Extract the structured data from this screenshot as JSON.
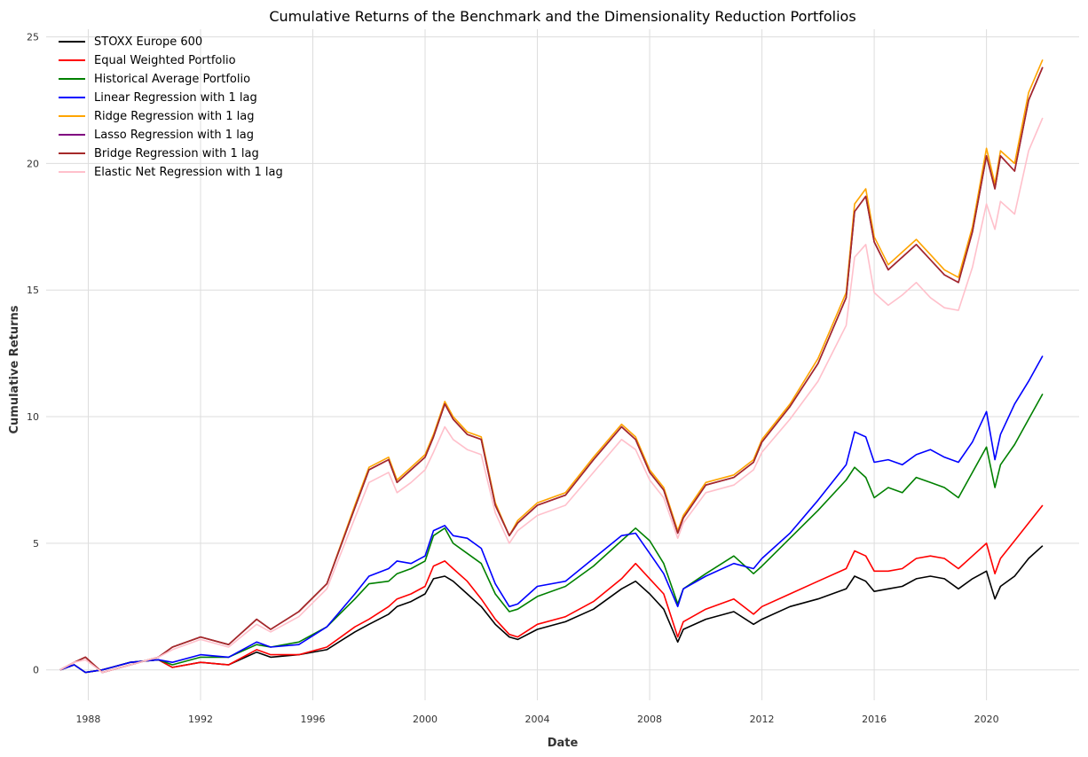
{
  "chart_data": {
    "type": "line",
    "title": "Cumulative Returns of the Benchmark and the Dimensionality Reduction Portfolios",
    "xlabel": "Date",
    "ylabel": "Cumulative Returns",
    "x_ticks": [
      "1988",
      "1992",
      "1996",
      "2000",
      "2004",
      "2008",
      "2012",
      "2016",
      "2020"
    ],
    "y_ticks": [
      "0",
      "5",
      "10",
      "15",
      "20",
      "25"
    ],
    "xlim": [
      1986.5,
      2023.3
    ],
    "ylim": [
      -1.2,
      25.3
    ],
    "grid": true,
    "legend_position": "top-left",
    "x": [
      1987.0,
      1987.5,
      1987.9,
      1988.5,
      1989.5,
      1990.5,
      1991.0,
      1992.0,
      1993.0,
      1994.0,
      1994.5,
      1995.5,
      1996.5,
      1997.5,
      1998.0,
      1998.7,
      1999.0,
      1999.5,
      2000.0,
      2000.3,
      2000.7,
      2001.0,
      2001.5,
      2002.0,
      2002.5,
      2003.0,
      2003.3,
      2004.0,
      2005.0,
      2006.0,
      2007.0,
      2007.5,
      2008.0,
      2008.5,
      2009.0,
      2009.2,
      2010.0,
      2011.0,
      2011.7,
      2012.0,
      2013.0,
      2014.0,
      2015.0,
      2015.3,
      2015.7,
      2016.0,
      2016.5,
      2017.0,
      2017.5,
      2018.0,
      2018.5,
      2019.0,
      2019.5,
      2020.0,
      2020.3,
      2020.5,
      2021.0,
      2021.5,
      2022.0
    ],
    "series": [
      {
        "name": "STOXX Europe 600",
        "color": "#000000",
        "values": [
          0.0,
          0.2,
          -0.1,
          0.0,
          0.3,
          0.4,
          0.1,
          0.3,
          0.2,
          0.7,
          0.5,
          0.6,
          0.8,
          1.5,
          1.8,
          2.2,
          2.5,
          2.7,
          3.0,
          3.6,
          3.7,
          3.5,
          3.0,
          2.5,
          1.8,
          1.3,
          1.2,
          1.6,
          1.9,
          2.4,
          3.2,
          3.5,
          3.0,
          2.4,
          1.1,
          1.6,
          2.0,
          2.3,
          1.8,
          2.0,
          2.5,
          2.8,
          3.2,
          3.7,
          3.5,
          3.1,
          3.2,
          3.3,
          3.6,
          3.7,
          3.6,
          3.2,
          3.6,
          3.9,
          2.8,
          3.3,
          3.7,
          4.4,
          4.9
        ]
      },
      {
        "name": "Equal Weighted Portfolio",
        "color": "#ff0000",
        "values": [
          0.0,
          0.2,
          -0.1,
          0.0,
          0.3,
          0.4,
          0.1,
          0.3,
          0.2,
          0.8,
          0.6,
          0.6,
          0.9,
          1.7,
          2.0,
          2.5,
          2.8,
          3.0,
          3.3,
          4.1,
          4.3,
          4.0,
          3.5,
          2.8,
          2.0,
          1.4,
          1.3,
          1.8,
          2.1,
          2.7,
          3.6,
          4.2,
          3.6,
          3.0,
          1.3,
          1.9,
          2.4,
          2.8,
          2.2,
          2.5,
          3.0,
          3.5,
          4.0,
          4.7,
          4.5,
          3.9,
          3.9,
          4.0,
          4.4,
          4.5,
          4.4,
          4.0,
          4.5,
          5.0,
          3.8,
          4.4,
          5.1,
          5.8,
          6.5
        ]
      },
      {
        "name": "Historical Average Portfolio",
        "color": "#008000",
        "values": [
          0.0,
          0.2,
          -0.1,
          0.0,
          0.3,
          0.4,
          0.2,
          0.5,
          0.5,
          1.0,
          0.9,
          1.1,
          1.7,
          2.8,
          3.4,
          3.5,
          3.8,
          4.0,
          4.3,
          5.3,
          5.6,
          5.0,
          4.6,
          4.2,
          3.0,
          2.3,
          2.4,
          2.9,
          3.3,
          4.1,
          5.1,
          5.6,
          5.1,
          4.2,
          2.6,
          3.2,
          3.8,
          4.5,
          3.8,
          4.1,
          5.2,
          6.3,
          7.5,
          8.0,
          7.6,
          6.8,
          7.2,
          7.0,
          7.6,
          7.4,
          7.2,
          6.8,
          7.8,
          8.8,
          7.2,
          8.1,
          8.9,
          9.9,
          10.9
        ]
      },
      {
        "name": "Linear Regression with 1 lag",
        "color": "#0000ff",
        "values": [
          0.0,
          0.2,
          -0.1,
          0.0,
          0.3,
          0.4,
          0.3,
          0.6,
          0.5,
          1.1,
          0.9,
          1.0,
          1.7,
          3.0,
          3.7,
          4.0,
          4.3,
          4.2,
          4.5,
          5.5,
          5.7,
          5.3,
          5.2,
          4.8,
          3.4,
          2.5,
          2.6,
          3.3,
          3.5,
          4.4,
          5.3,
          5.4,
          4.6,
          3.8,
          2.5,
          3.2,
          3.7,
          4.2,
          4.0,
          4.4,
          5.4,
          6.7,
          8.1,
          9.4,
          9.2,
          8.2,
          8.3,
          8.1,
          8.5,
          8.7,
          8.4,
          8.2,
          9.0,
          10.2,
          8.3,
          9.3,
          10.5,
          11.4,
          12.4
        ]
      },
      {
        "name": "Ridge Regression with 1 lag",
        "color": "#ffa500",
        "values": [
          0.0,
          0.3,
          0.5,
          -0.1,
          0.2,
          0.5,
          0.9,
          1.3,
          1.0,
          2.0,
          1.6,
          2.3,
          3.4,
          6.5,
          8.0,
          8.4,
          7.5,
          8.0,
          8.5,
          9.3,
          10.6,
          10.0,
          9.4,
          9.2,
          6.6,
          5.3,
          5.9,
          6.6,
          7.0,
          8.4,
          9.7,
          9.2,
          7.9,
          7.2,
          5.5,
          6.1,
          7.4,
          7.7,
          8.3,
          9.1,
          10.5,
          12.3,
          14.9,
          18.4,
          19.0,
          17.1,
          16.0,
          16.5,
          17.0,
          16.4,
          15.8,
          15.5,
          17.5,
          20.6,
          19.2,
          20.5,
          20.0,
          22.8,
          24.1
        ]
      },
      {
        "name": "Lasso Regression with 1 lag",
        "color": "#800080",
        "values": [
          0.0,
          0.3,
          0.5,
          -0.1,
          0.2,
          0.5,
          0.9,
          1.3,
          1.0,
          2.0,
          1.6,
          2.3,
          3.4,
          6.4,
          7.9,
          8.3,
          7.4,
          7.9,
          8.4,
          9.2,
          10.5,
          9.9,
          9.3,
          9.1,
          6.5,
          5.3,
          5.8,
          6.5,
          6.9,
          8.3,
          9.6,
          9.1,
          7.8,
          7.1,
          5.4,
          6.0,
          7.3,
          7.6,
          8.2,
          9.0,
          10.4,
          12.1,
          14.7,
          18.1,
          18.7,
          16.9,
          15.8,
          16.3,
          16.8,
          16.2,
          15.6,
          15.3,
          17.3,
          20.3,
          19.0,
          20.3,
          19.7,
          22.5,
          23.8
        ]
      },
      {
        "name": "Bridge Regression with 1 lag",
        "color": "#a52a2a",
        "values": [
          0.0,
          0.3,
          0.5,
          -0.1,
          0.2,
          0.5,
          0.9,
          1.3,
          1.0,
          2.0,
          1.6,
          2.3,
          3.4,
          6.4,
          7.9,
          8.3,
          7.4,
          7.9,
          8.4,
          9.2,
          10.5,
          9.9,
          9.3,
          9.1,
          6.5,
          5.3,
          5.8,
          6.5,
          6.9,
          8.3,
          9.6,
          9.1,
          7.8,
          7.1,
          5.4,
          6.0,
          7.3,
          7.6,
          8.2,
          9.0,
          10.4,
          12.1,
          14.7,
          18.1,
          18.7,
          16.9,
          15.8,
          16.3,
          16.8,
          16.2,
          15.6,
          15.3,
          17.3,
          20.3,
          19.0,
          20.3,
          19.7,
          22.5,
          23.8
        ]
      },
      {
        "name": "Elastic Net Regression with 1 lag",
        "color": "#ffc0cb",
        "values": [
          0.0,
          0.3,
          0.4,
          -0.1,
          0.2,
          0.5,
          0.8,
          1.2,
          0.9,
          1.8,
          1.5,
          2.1,
          3.2,
          6.0,
          7.4,
          7.8,
          7.0,
          7.4,
          7.9,
          8.6,
          9.6,
          9.1,
          8.7,
          8.5,
          6.2,
          5.0,
          5.5,
          6.1,
          6.5,
          7.8,
          9.1,
          8.7,
          7.5,
          6.8,
          5.2,
          5.8,
          7.0,
          7.3,
          7.9,
          8.6,
          9.9,
          11.4,
          13.6,
          16.3,
          16.8,
          14.9,
          14.4,
          14.8,
          15.3,
          14.7,
          14.3,
          14.2,
          15.9,
          18.4,
          17.4,
          18.5,
          18.0,
          20.5,
          21.8
        ]
      }
    ]
  }
}
